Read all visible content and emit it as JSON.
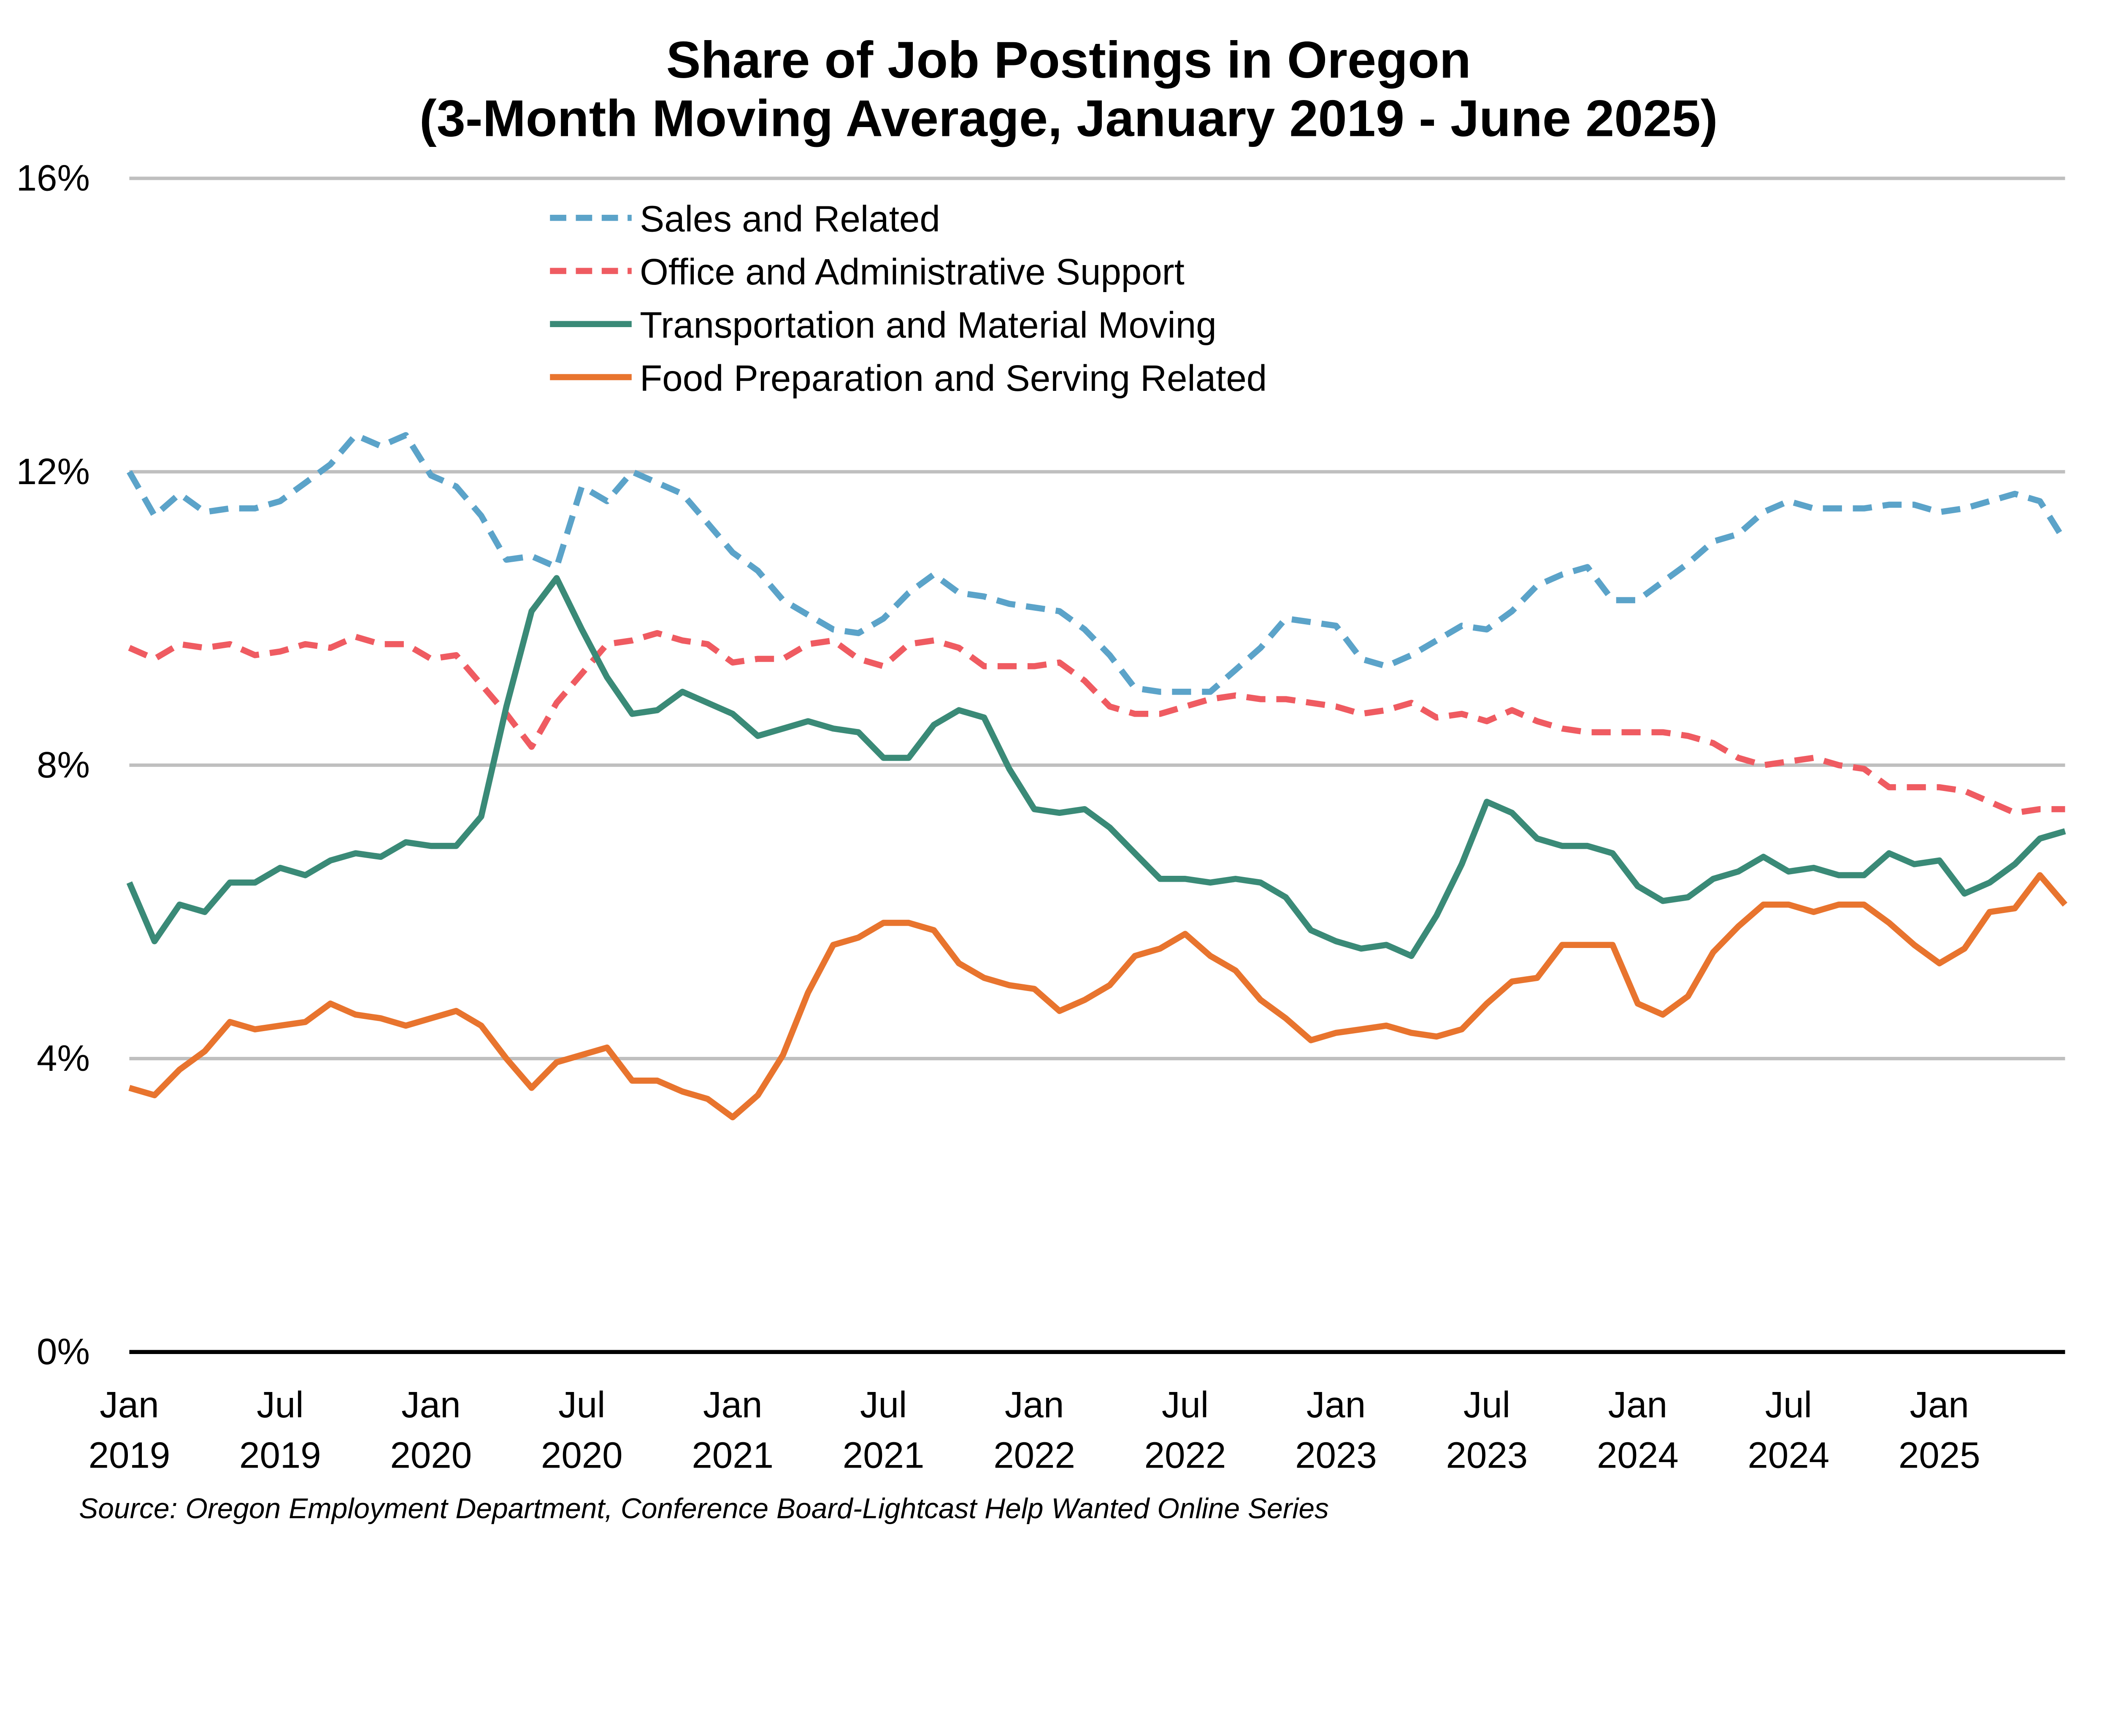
{
  "chart_data": {
    "type": "line",
    "title": [
      "Share of Job Postings in Oregon",
      "(3-Month Moving Average, January 2019 - June 2025)"
    ],
    "xlabel": "",
    "ylabel": "",
    "ylim": [
      0,
      16
    ],
    "y_ticks": [
      0,
      4,
      8,
      12,
      16
    ],
    "y_tick_labels": [
      "0%",
      "4%",
      "8%",
      "12%",
      "16%"
    ],
    "x_range": [
      "2019-01",
      "2025-06"
    ],
    "x_tick_labels": [
      [
        "Jan",
        "2019"
      ],
      [
        "Jul",
        "2019"
      ],
      [
        "Jan",
        "2020"
      ],
      [
        "Jul",
        "2020"
      ],
      [
        "Jan",
        "2021"
      ],
      [
        "Jul",
        "2021"
      ],
      [
        "Jan",
        "2022"
      ],
      [
        "Jul",
        "2022"
      ],
      [
        "Jan",
        "2023"
      ],
      [
        "Jul",
        "2023"
      ],
      [
        "Jan",
        "2024"
      ],
      [
        "Jul",
        "2024"
      ],
      [
        "Jan",
        "2025"
      ]
    ],
    "grid": "horizontal",
    "legend_position": "top-center",
    "source": "Source: Oregon Employment Department, Conference Board-Lightcast Help Wanted Online Series",
    "series": [
      {
        "name": "Sales and Related",
        "color": "#5BA3C9",
        "style": "dashed",
        "values": [
          12.0,
          11.4,
          11.7,
          11.45,
          11.5,
          11.5,
          11.6,
          11.85,
          12.1,
          12.5,
          12.35,
          12.5,
          11.95,
          11.8,
          11.4,
          10.8,
          10.85,
          10.7,
          11.8,
          11.6,
          12.0,
          11.85,
          11.7,
          11.3,
          10.9,
          10.65,
          10.25,
          10.05,
          9.85,
          9.8,
          10.0,
          10.35,
          10.6,
          10.35,
          10.3,
          10.2,
          10.15,
          10.1,
          9.85,
          9.5,
          9.05,
          9.0,
          9.0,
          9.0,
          9.3,
          9.6,
          10.0,
          9.95,
          9.9,
          9.45,
          9.35,
          9.5,
          9.7,
          9.9,
          9.85,
          10.1,
          10.45,
          10.6,
          10.7,
          10.25,
          10.25,
          10.5,
          10.75,
          11.05,
          11.15,
          11.45,
          11.6,
          11.5,
          11.5,
          11.5,
          11.55,
          11.55,
          11.45,
          11.5,
          11.6,
          11.7,
          11.6,
          11.05
        ]
      },
      {
        "name": "Office and Administrative Support",
        "color": "#EF5B61",
        "style": "dashed",
        "values": [
          9.6,
          9.45,
          9.65,
          9.6,
          9.65,
          9.5,
          9.55,
          9.65,
          9.6,
          9.75,
          9.65,
          9.65,
          9.45,
          9.5,
          9.1,
          8.7,
          8.25,
          8.85,
          9.25,
          9.65,
          9.7,
          9.8,
          9.7,
          9.65,
          9.4,
          9.45,
          9.45,
          9.65,
          9.7,
          9.45,
          9.35,
          9.65,
          9.7,
          9.6,
          9.35,
          9.35,
          9.35,
          9.4,
          9.15,
          8.8,
          8.7,
          8.7,
          8.8,
          8.9,
          8.95,
          8.9,
          8.9,
          8.85,
          8.8,
          8.7,
          8.75,
          8.85,
          8.65,
          8.7,
          8.6,
          8.75,
          8.6,
          8.5,
          8.45,
          8.45,
          8.45,
          8.45,
          8.4,
          8.3,
          8.1,
          8.0,
          8.05,
          8.1,
          8.0,
          7.95,
          7.7,
          7.7,
          7.7,
          7.65,
          7.5,
          7.35,
          7.4,
          7.4
        ]
      },
      {
        "name": "Transportation and Material Moving",
        "color": "#3A8A77",
        "style": "solid",
        "values": [
          6.4,
          5.6,
          6.1,
          6.0,
          6.4,
          6.4,
          6.6,
          6.5,
          6.7,
          6.8,
          6.75,
          6.95,
          6.9,
          6.9,
          7.3,
          8.8,
          10.1,
          10.55,
          9.85,
          9.2,
          8.7,
          8.75,
          9.0,
          8.85,
          8.7,
          8.4,
          8.5,
          8.6,
          8.5,
          8.45,
          8.1,
          8.1,
          8.55,
          8.75,
          8.65,
          7.95,
          7.4,
          7.35,
          7.4,
          7.15,
          6.8,
          6.45,
          6.45,
          6.4,
          6.45,
          6.4,
          6.2,
          5.75,
          5.6,
          5.5,
          5.55,
          5.4,
          5.95,
          6.65,
          7.5,
          7.35,
          7.0,
          6.9,
          6.9,
          6.8,
          6.35,
          6.15,
          6.2,
          6.45,
          6.55,
          6.75,
          6.55,
          6.6,
          6.5,
          6.5,
          6.8,
          6.65,
          6.7,
          6.25,
          6.4,
          6.65,
          7.0,
          7.1
        ]
      },
      {
        "name": "Food Preparation and Serving Related",
        "color": "#E8742E",
        "style": "solid",
        "values": [
          3.6,
          3.5,
          3.85,
          4.1,
          4.5,
          4.4,
          4.45,
          4.5,
          4.75,
          4.6,
          4.55,
          4.45,
          4.55,
          4.65,
          4.45,
          4.0,
          3.6,
          3.95,
          4.05,
          4.15,
          3.7,
          3.7,
          3.55,
          3.45,
          3.2,
          3.5,
          4.05,
          4.9,
          5.55,
          5.65,
          5.85,
          5.85,
          5.75,
          5.3,
          5.1,
          5.0,
          4.95,
          4.65,
          4.8,
          5.0,
          5.4,
          5.5,
          5.7,
          5.4,
          5.2,
          4.8,
          4.55,
          4.25,
          4.35,
          4.4,
          4.45,
          4.35,
          4.3,
          4.4,
          4.75,
          5.05,
          5.1,
          5.55,
          5.55,
          5.55,
          4.75,
          4.6,
          4.85,
          5.45,
          5.8,
          6.1,
          6.1,
          6.0,
          6.1,
          6.1,
          5.85,
          5.55,
          5.3,
          5.5,
          6.0,
          6.05,
          6.5,
          6.1
        ]
      }
    ]
  }
}
